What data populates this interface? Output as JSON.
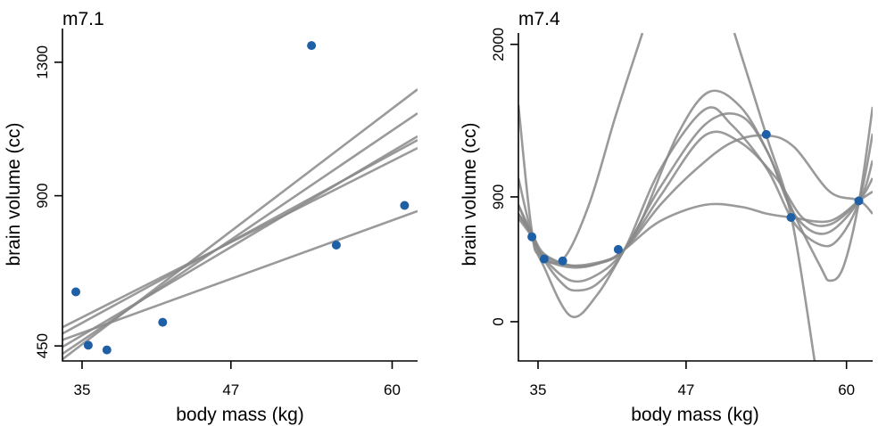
{
  "chart_data": [
    {
      "type": "line",
      "panel": "left",
      "title": "m7.1",
      "xlabel": "body mass (kg)",
      "ylabel": "brain volume (cc)",
      "xlim": [
        33.42,
        62.05
      ],
      "ylim": [
        405,
        1401
      ],
      "xticks": [
        35,
        47,
        60
      ],
      "xtick_labels": [
        "35",
        "47",
        "60"
      ],
      "yticks": [
        450,
        900,
        1300
      ],
      "ytick_labels": [
        "450",
        "900",
        "1300"
      ],
      "grid": false,
      "points": {
        "name": "observed",
        "color": "#1f5fa6",
        "x": [
          37.0,
          35.5,
          34.5,
          41.5,
          55.5,
          61.0,
          53.5
        ],
        "y": [
          438,
          452,
          612,
          521,
          752,
          871,
          1350
        ]
      },
      "series": [
        {
          "name": "posterior line 1",
          "x": [
            33.42,
            62.05
          ],
          "y": [
            410,
            1219
          ]
        },
        {
          "name": "posterior line 2",
          "x": [
            33.42,
            62.05
          ],
          "y": [
            426,
            1147
          ]
        },
        {
          "name": "posterior line 3",
          "x": [
            33.42,
            62.05
          ],
          "y": [
            447,
            1078
          ]
        },
        {
          "name": "posterior line 4",
          "x": [
            33.42,
            62.05
          ],
          "y": [
            487,
            1067
          ]
        },
        {
          "name": "posterior line 5",
          "x": [
            33.42,
            62.05
          ],
          "y": [
            506,
            1043
          ]
        },
        {
          "name": "posterior line 6",
          "x": [
            33.42,
            62.05
          ],
          "y": [
            468,
            854
          ]
        }
      ],
      "line_color": "#888888"
    },
    {
      "type": "line",
      "panel": "right",
      "title": "m7.4",
      "xlabel": "body mass (kg)",
      "ylabel": "brain volume (cc)",
      "xlim": [
        33.41,
        62.12
      ],
      "ylim": [
        -283,
        2082
      ],
      "xticks": [
        35,
        47,
        60
      ],
      "xtick_labels": [
        "35",
        "47",
        "60"
      ],
      "yticks": [
        0,
        900,
        2000
      ],
      "ytick_labels": [
        "0",
        "900",
        "2000"
      ],
      "grid": false,
      "points": {
        "name": "observed",
        "color": "#1f5fa6",
        "x": [
          37.0,
          35.5,
          34.5,
          41.5,
          55.5,
          61.0,
          53.5
        ],
        "y": [
          438,
          452,
          612,
          521,
          752,
          871,
          1350
        ]
      },
      "series": [
        {
          "name": "posterior curve 1",
          "x": [
            33.41,
            34.49,
            35.51,
            37.68,
            39.84,
            42.01,
            43.46,
            46.35,
            48.88,
            51.41,
            53.58,
            55.75,
            57.92,
            58.64,
            59.73,
            61.03,
            62.12
          ],
          "y": [
            1562,
            662,
            392,
            39,
            199,
            521,
            746,
            1356,
            1658,
            1549,
            1228,
            778,
            392,
            296,
            392,
            874,
            1549
          ]
        },
        {
          "name": "posterior curve 2",
          "x": [
            33.41,
            34.49,
            35.51,
            36.95,
            38.04,
            39.84,
            42.01,
            44.91,
            48.52,
            50.69,
            53.58,
            55.75,
            57.92,
            59.37,
            61.03,
            62.12
          ],
          "y": [
            1035,
            636,
            443,
            276,
            225,
            276,
            521,
            1099,
            1530,
            1420,
            1099,
            713,
            553,
            598,
            874,
            1356
          ]
        },
        {
          "name": "posterior curve 3",
          "x": [
            33.41,
            34.49,
            35.51,
            37.68,
            39.84,
            42.01,
            44.91,
            48.52,
            51.41,
            53.58,
            55.75,
            58.28,
            61.03,
            62.12
          ],
          "y": [
            842,
            636,
            456,
            296,
            341,
            521,
            970,
            1420,
            1485,
            1228,
            778,
            636,
            874,
            1163
          ]
        },
        {
          "name": "posterior curve 4",
          "x": [
            33.41,
            34.49,
            35.51,
            37.68,
            39.84,
            42.01,
            44.91,
            48.52,
            51.41,
            54.31,
            56.48,
            58.64,
            61.03,
            62.12
          ],
          "y": [
            778,
            636,
            488,
            405,
            418,
            521,
            906,
            1343,
            1292,
            1035,
            746,
            700,
            874,
            1035
          ]
        },
        {
          "name": "posterior curve 5",
          "x": [
            33.41,
            34.49,
            35.51,
            37.68,
            40.57,
            42.01,
            44.91,
            48.52,
            51.41,
            53.58,
            55.54,
            58.64,
            61.03,
            62.12
          ],
          "y": [
            746,
            617,
            476,
            405,
            443,
            521,
            726,
            842,
            829,
            778,
            752,
            726,
            874,
            938
          ]
        },
        {
          "name": "posterior curve 6",
          "x": [
            33.41,
            34.49,
            35.51,
            37.68,
            39.84,
            42.01,
            44.91,
            47.8,
            50.69,
            53.51,
            55.75,
            58.64,
            61.03,
            62.12
          ],
          "y": [
            778,
            623,
            456,
            392,
            418,
            521,
            842,
            1099,
            1292,
            1343,
            1260,
            938,
            874,
            778
          ]
        },
        {
          "name": "posterior curve 7 (extreme)",
          "x": [
            33.41,
            34.49,
            35.0,
            36.95,
            39.12,
            41.29,
            43.46,
            50.91,
            53.51,
            55.54,
            57.42
          ],
          "y": [
            842,
            612,
            488,
            443,
            842,
            1485,
            2082,
            2082,
            1343,
            752,
            -283
          ],
          "break_after_index": 6
        }
      ],
      "line_color": "#888888"
    }
  ]
}
